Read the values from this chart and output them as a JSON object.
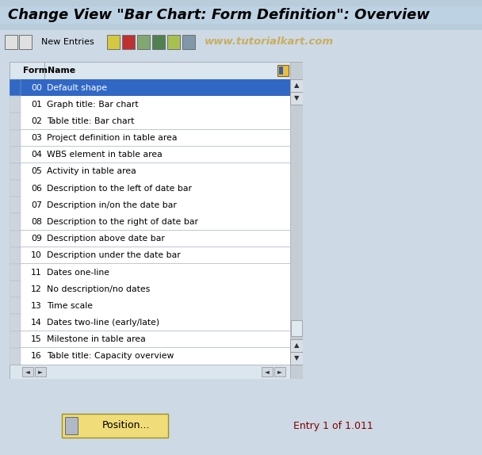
{
  "title": "Change View \"Bar Chart: Form Definition\": Overview",
  "toolbar_text": "New Entries",
  "watermark": "www.tutorialkart.com",
  "col_form": "Form",
  "col_name": "Name",
  "rows": [
    [
      "00",
      "Default shape"
    ],
    [
      "01",
      "Graph title: Bar chart"
    ],
    [
      "02",
      "Table title: Bar chart"
    ],
    [
      "03",
      "Project definition in table area"
    ],
    [
      "04",
      "WBS element in table area"
    ],
    [
      "05",
      "Activity in table area"
    ],
    [
      "06",
      "Description to the left of date bar"
    ],
    [
      "07",
      "Description in/on the date bar"
    ],
    [
      "08",
      "Description to the right of date bar"
    ],
    [
      "09",
      "Description above date bar"
    ],
    [
      "10",
      "Description under the date bar"
    ],
    [
      "11",
      "Dates one-line"
    ],
    [
      "12",
      "No description/no dates"
    ],
    [
      "13",
      "Time scale"
    ],
    [
      "14",
      "Dates two-line (early/late)"
    ],
    [
      "15",
      "Milestone in table area"
    ],
    [
      "16",
      "Table title: Capacity overview"
    ]
  ],
  "selected_row": 0,
  "footer_button": "Position...",
  "footer_text": "Entry 1 of 1.011",
  "bg_color": "#cdd9e5",
  "title_bg_top": "#b8ccda",
  "title_bg_bot": "#c8d8e8",
  "toolbar_bg": "#cdd9e5",
  "table_bg": "#ffffff",
  "header_row_bg": "#dce6ee",
  "sel_bg": "#3168c5",
  "sel_fg": "#ffffff",
  "row_fg": "#000000",
  "row_sep": "#c8d0d8",
  "scroll_bg": "#c0c8d0",
  "scroll_btn_bg": "#d0d8e0",
  "nav_btn_bg": "#d0d8d8",
  "btn_bg": "#f0dc78",
  "btn_border": "#a09020",
  "entry_color": "#800000",
  "font_size_title": 13,
  "font_size_toolbar": 8,
  "font_size_table": 7.8,
  "font_size_footer": 9
}
